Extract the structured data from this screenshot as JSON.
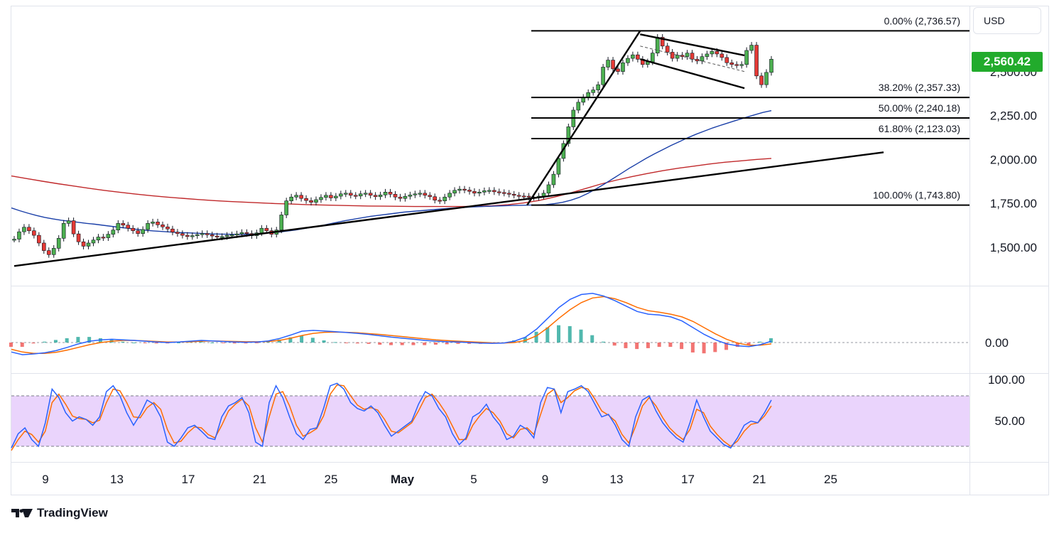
{
  "currency_button": "USD",
  "last_price": "2,560.42",
  "brand": "TradingView",
  "colors": {
    "up": "#26a69a",
    "candle_up": "#4caf50",
    "candle_down": "#e53935",
    "ma_fast": "#1a3fa8",
    "ma_slow": "#c0282a",
    "macd": "#2962ff",
    "signal": "#ff6d00",
    "hist_pos": "#26a69a",
    "hist_neg": "#ef5350",
    "rsi_band": "#e6cdfb",
    "price_badge": "#22ab2c"
  },
  "chart_data": {
    "type": "candlestick",
    "price_axis": {
      "ticks": [
        1500,
        1750,
        2000,
        2250,
        2500
      ],
      "tick_labels": [
        "1,500.00",
        "1,750.00",
        "2,000.00",
        "2,250.00",
        "2,500.00"
      ],
      "range": [
        1285,
        2880
      ]
    },
    "x_axis": {
      "tick_labels": [
        "9",
        "13",
        "17",
        "21",
        "25",
        "May",
        "5",
        "9",
        "13",
        "17",
        "21",
        "25"
      ]
    },
    "fibonacci": [
      {
        "label": "0.00% (2,736.57)",
        "value": 2736.57
      },
      {
        "label": "38.20% (2,357.33)",
        "value": 2357.33
      },
      {
        "label": "50.00% (2,240.18)",
        "value": 2240.18
      },
      {
        "label": "61.80% (2,123.03)",
        "value": 2123.03
      },
      {
        "label": "100.00% (1,743.80)",
        "value": 1743.8
      }
    ],
    "close_series": [
      1550,
      1592,
      1618,
      1598,
      1572,
      1528,
      1485,
      1462,
      1498,
      1555,
      1640,
      1655,
      1580,
      1535,
      1510,
      1528,
      1545,
      1562,
      1558,
      1578,
      1602,
      1640,
      1630,
      1612,
      1598,
      1582,
      1605,
      1640,
      1648,
      1632,
      1620,
      1608,
      1590,
      1582,
      1572,
      1565,
      1570,
      1576,
      1582,
      1575,
      1568,
      1562,
      1565,
      1572,
      1575,
      1580,
      1588,
      1582,
      1570,
      1586,
      1612,
      1598,
      1578,
      1602,
      1688,
      1768,
      1790,
      1800,
      1782,
      1770,
      1760,
      1775,
      1788,
      1800,
      1785,
      1795,
      1808,
      1812,
      1800,
      1796,
      1808,
      1812,
      1800,
      1792,
      1802,
      1818,
      1806,
      1790,
      1782,
      1794,
      1802,
      1808,
      1812,
      1800,
      1792,
      1772,
      1768,
      1790,
      1812,
      1828,
      1835,
      1830,
      1822,
      1812,
      1818,
      1826,
      1828,
      1820,
      1816,
      1812,
      1806,
      1800,
      1796,
      1795,
      1790,
      1788,
      1795,
      1812,
      1860,
      1920,
      2010,
      2095,
      2190,
      2285,
      2330,
      2358,
      2385,
      2400,
      2430,
      2530,
      2570,
      2520,
      2505,
      2555,
      2580,
      2600,
      2575,
      2545,
      2560,
      2610,
      2700,
      2650,
      2615,
      2580,
      2598,
      2590,
      2610,
      2575,
      2565,
      2590,
      2605,
      2620,
      2605,
      2585,
      2555,
      2545,
      2540,
      2545,
      2625,
      2655,
      2480,
      2430,
      2500,
      2575
    ],
    "ma_fast_series": [
      1728,
      1712,
      1698,
      1685,
      1674,
      1665,
      1658,
      1652,
      1646,
      1640,
      1635,
      1629,
      1623,
      1617,
      1612,
      1606,
      1601,
      1597,
      1594,
      1591,
      1588,
      1586,
      1584,
      1582,
      1580,
      1579,
      1578,
      1577,
      1578,
      1579,
      1582,
      1586,
      1590,
      1596,
      1602,
      1610,
      1618,
      1626,
      1636,
      1646,
      1656,
      1664,
      1672,
      1680,
      1686,
      1692,
      1698,
      1704,
      1708,
      1712,
      1716,
      1720,
      1724,
      1728,
      1730,
      1733,
      1735,
      1737,
      1739,
      1740,
      1742,
      1743,
      1744,
      1745,
      1747,
      1752,
      1760,
      1772,
      1788,
      1810,
      1836,
      1864,
      1894,
      1924,
      1954,
      1982,
      2010,
      2036,
      2060,
      2084,
      2106,
      2128,
      2148,
      2166,
      2184,
      2200,
      2215,
      2230,
      2244,
      2258,
      2272,
      2282
    ],
    "ma_slow_series": [
      1910,
      1895,
      1880,
      1866,
      1853,
      1840,
      1828,
      1817,
      1807,
      1798,
      1790,
      1783,
      1776,
      1770,
      1765,
      1761,
      1757,
      1753,
      1750,
      1747,
      1745,
      1743,
      1741,
      1739,
      1738,
      1737,
      1736,
      1736,
      1736,
      1736,
      1737,
      1740,
      1746,
      1756,
      1770,
      1790,
      1812,
      1838,
      1864,
      1886,
      1906,
      1924,
      1940,
      1954,
      1966,
      1978,
      1988,
      1996,
      2004,
      2010
    ],
    "trendlines": [
      {
        "name": "rising-support",
        "from": [
          0,
          1397
        ],
        "to": [
          1,
          2045
        ]
      },
      {
        "name": "flag-impulse",
        "from": [
          0.59,
          1743.8
        ],
        "to": [
          0.72,
          2736.57
        ]
      },
      {
        "name": "channel-upper",
        "from": [
          0.72,
          2717
        ],
        "to": [
          0.84,
          2597
        ]
      },
      {
        "name": "channel-lower",
        "from": [
          0.72,
          2576
        ],
        "to": [
          0.84,
          2410
        ]
      }
    ],
    "macd_panel": {
      "zero_label": "0.00",
      "macd": [
        -0.35,
        -0.45,
        -0.42,
        -0.38,
        -0.3,
        -0.18,
        -0.05,
        0.05,
        0.1,
        0.12,
        0.1,
        0.08,
        0.05,
        0.02,
        0.0,
        0.02,
        0.05,
        0.08,
        0.06,
        0.04,
        0.02,
        0.01,
        0.02,
        0.06,
        0.15,
        0.28,
        0.42,
        0.45,
        0.43,
        0.4,
        0.37,
        0.34,
        0.3,
        0.25,
        0.2,
        0.16,
        0.12,
        0.08,
        0.05,
        0.03,
        0.02,
        0.0,
        -0.02,
        -0.03,
        -0.02,
        0.05,
        0.2,
        0.5,
        0.9,
        1.3,
        1.6,
        1.78,
        1.82,
        1.72,
        1.55,
        1.35,
        1.15,
        1.05,
        1.02,
        0.95,
        0.8,
        0.55,
        0.3,
        0.1,
        -0.05,
        -0.12,
        -0.15,
        -0.08,
        0.05
      ],
      "signal": [
        -0.25,
        -0.35,
        -0.4,
        -0.4,
        -0.36,
        -0.28,
        -0.18,
        -0.08,
        0.0,
        0.05,
        0.08,
        0.08,
        0.06,
        0.04,
        0.02,
        0.02,
        0.03,
        0.05,
        0.06,
        0.05,
        0.04,
        0.03,
        0.03,
        0.04,
        0.08,
        0.16,
        0.26,
        0.34,
        0.38,
        0.39,
        0.38,
        0.36,
        0.33,
        0.3,
        0.26,
        0.22,
        0.18,
        0.14,
        0.1,
        0.07,
        0.05,
        0.03,
        0.01,
        -0.01,
        -0.02,
        0.0,
        0.08,
        0.25,
        0.55,
        0.9,
        1.22,
        1.48,
        1.65,
        1.7,
        1.62,
        1.48,
        1.3,
        1.18,
        1.12,
        1.05,
        0.95,
        0.78,
        0.55,
        0.32,
        0.12,
        -0.02,
        -0.1,
        -0.1,
        -0.05
      ]
    },
    "rsi_panel": {
      "tick_labels": [
        "100.00",
        "50.00"
      ],
      "ticks": [
        100,
        50
      ],
      "bounds": [
        80,
        20
      ],
      "k": [
        18,
        35,
        42,
        28,
        20,
        48,
        88,
        78,
        60,
        50,
        55,
        52,
        45,
        55,
        85,
        92,
        80,
        60,
        45,
        58,
        75,
        70,
        55,
        25,
        20,
        30,
        42,
        45,
        38,
        30,
        28,
        55,
        68,
        72,
        78,
        60,
        25,
        20,
        72,
        92,
        78,
        55,
        35,
        28,
        40,
        42,
        65,
        92,
        95,
        88,
        72,
        65,
        62,
        68,
        60,
        45,
        32,
        38,
        44,
        50,
        70,
        85,
        80,
        65,
        55,
        35,
        22,
        30,
        55,
        60,
        70,
        55,
        45,
        28,
        32,
        45,
        40,
        30,
        72,
        90,
        88,
        60,
        85,
        88,
        92,
        85,
        70,
        55,
        58,
        45,
        28,
        20,
        55,
        75,
        80,
        62,
        48,
        38,
        30,
        25,
        48,
        75,
        55,
        38,
        30,
        22,
        18,
        30,
        45,
        50,
        48,
        60,
        75
      ],
      "d": [
        15,
        28,
        38,
        34,
        25,
        38,
        72,
        82,
        70,
        56,
        53,
        52,
        48,
        51,
        72,
        88,
        86,
        72,
        55,
        54,
        66,
        72,
        64,
        40,
        24,
        26,
        36,
        43,
        42,
        34,
        30,
        45,
        62,
        70,
        76,
        68,
        42,
        25,
        55,
        82,
        85,
        68,
        45,
        32,
        36,
        41,
        56,
        82,
        93,
        92,
        80,
        69,
        64,
        66,
        63,
        52,
        38,
        36,
        42,
        48,
        62,
        78,
        82,
        72,
        60,
        44,
        28,
        28,
        45,
        56,
        65,
        60,
        50,
        35,
        30,
        40,
        42,
        34,
        58,
        82,
        88,
        72,
        78,
        86,
        90,
        88,
        76,
        62,
        57,
        50,
        34,
        24,
        44,
        68,
        78,
        68,
        54,
        42,
        34,
        28,
        40,
        64,
        60,
        44,
        34,
        26,
        20,
        26,
        38,
        46,
        48,
        56,
        68
      ]
    }
  }
}
